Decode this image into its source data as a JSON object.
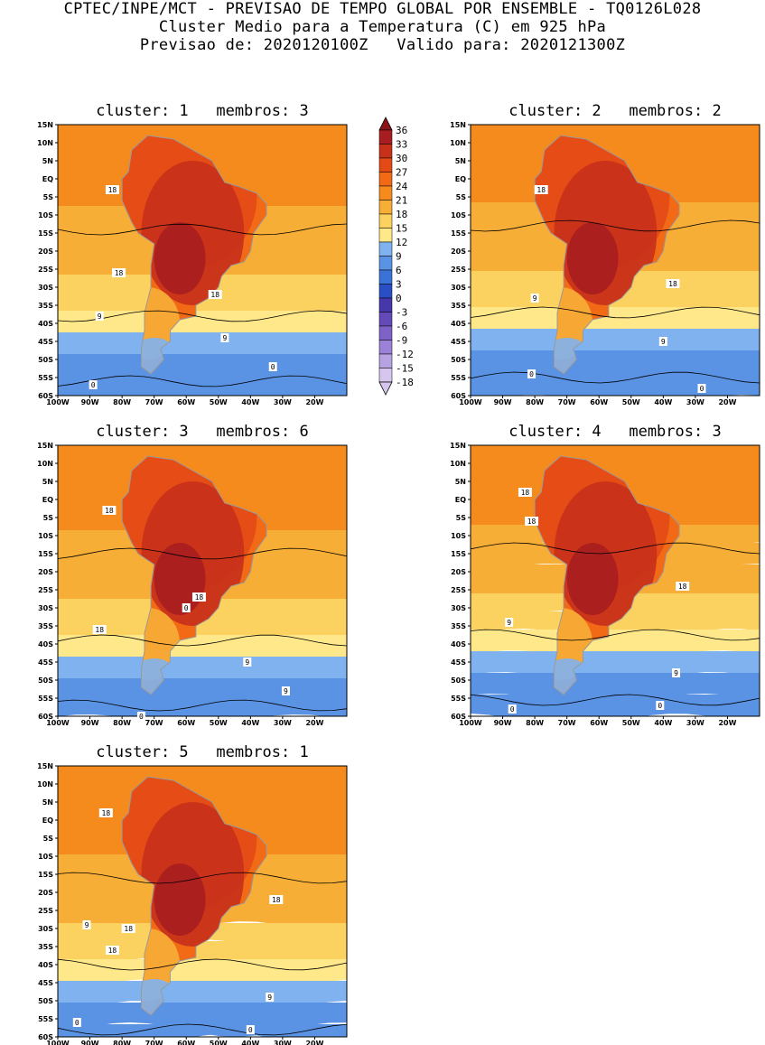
{
  "header": {
    "line1": "CPTEC/INPE/MCT - PREVISAO DE TEMPO GLOBAL POR ENSEMBLE - TQ0126L028",
    "line2": "Cluster Medio para a Temperatura (C) em 925 hPa",
    "line3": "Previsao de: 2020120100Z   Valido para: 2020121300Z"
  },
  "colors": {
    "levels": [
      "#d6c6ee",
      "#b7a2e2",
      "#9b82d6",
      "#7e62c8",
      "#6449b8",
      "#4637aa",
      "#2a4fc4",
      "#3b72d8",
      "#5a92e4",
      "#7fb2ee",
      "#ffe889",
      "#fbd15f",
      "#f7ae37",
      "#f58a1d",
      "#f26a16",
      "#e44a16",
      "#c7301a",
      "#a81d20",
      "#8a1219"
    ],
    "coast": "#9a9a9a"
  },
  "chart_data": {
    "type": "heatmap",
    "variable": "Temperatura (C) em 925 hPa",
    "colorbar": {
      "ticks": [
        36,
        33,
        30,
        27,
        24,
        21,
        18,
        15,
        12,
        9,
        6,
        3,
        0,
        -3,
        -6,
        -9,
        -12,
        -15,
        -18
      ]
    },
    "lat_ticks": [
      "15N",
      "10N",
      "5N",
      "EQ",
      "5S",
      "10S",
      "15S",
      "20S",
      "25S",
      "30S",
      "35S",
      "40S",
      "45S",
      "50S",
      "55S",
      "60S"
    ],
    "lon_ticks": [
      "100W",
      "90W",
      "80W",
      "70W",
      "60W",
      "50W",
      "40W",
      "30W",
      "20W"
    ],
    "panels": [
      {
        "title": "cluster: 1   membros: 3",
        "contour_labels": [
          "18",
          "18",
          "18",
          "9",
          "9",
          "0",
          "0"
        ]
      },
      {
        "title": "cluster: 2   membros: 2",
        "contour_labels": [
          "18",
          "18",
          "9",
          "9",
          "0",
          "0"
        ]
      },
      {
        "title": "cluster: 3   membros: 6",
        "contour_labels": [
          "18",
          "18",
          "18",
          "9",
          "9",
          "0",
          "0"
        ]
      },
      {
        "title": "cluster: 4   membros: 3",
        "contour_labels": [
          "18",
          "18",
          "18",
          "9",
          "9",
          "0",
          "0"
        ]
      },
      {
        "title": "cluster: 5   membros: 1",
        "contour_labels": [
          "18",
          "18",
          "18",
          "18",
          "9",
          "9",
          "0",
          "0"
        ]
      }
    ]
  }
}
